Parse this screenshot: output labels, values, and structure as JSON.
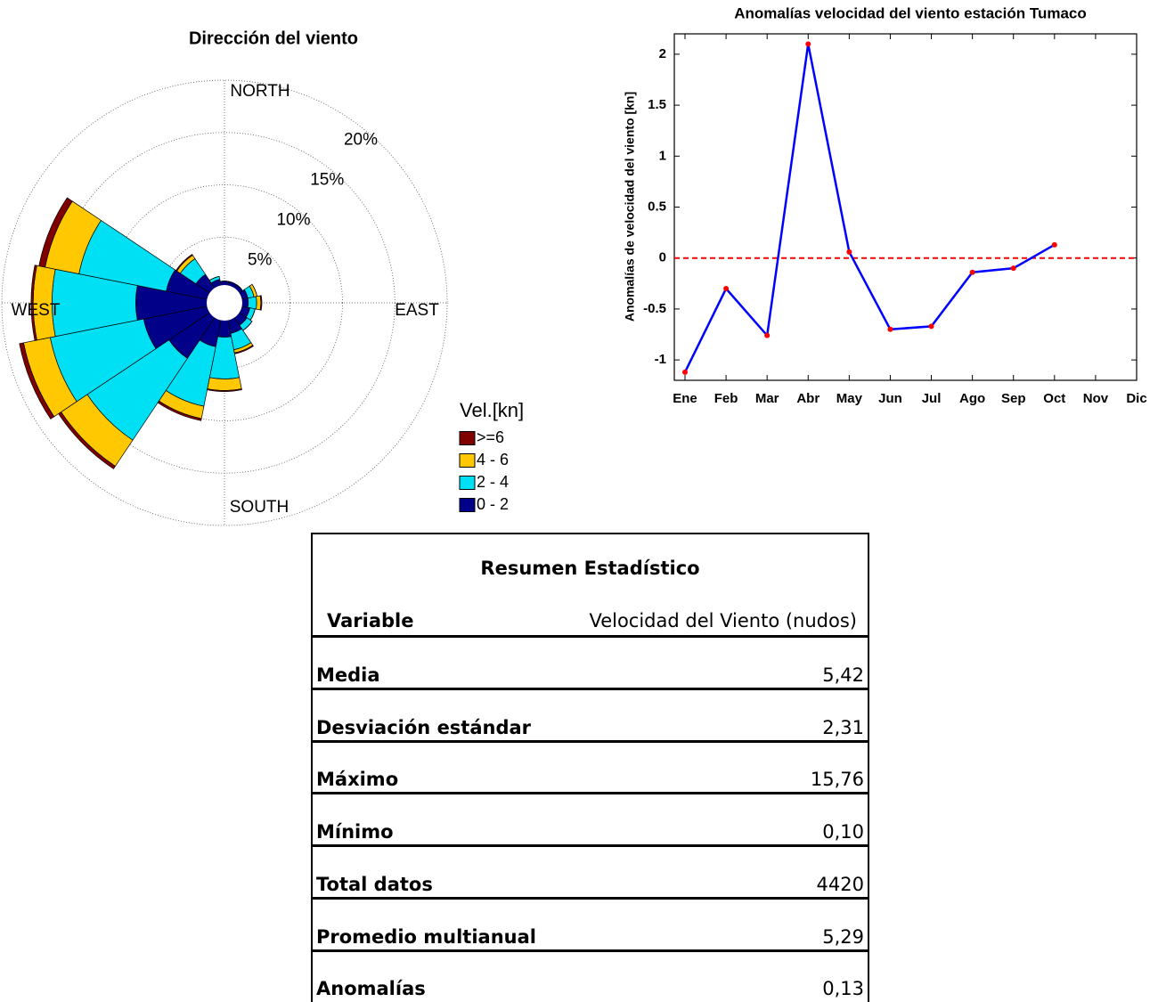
{
  "chart_data": [
    {
      "type": "windrose",
      "title": "Dirección del viento",
      "categories": [
        null,
        null,
        null,
        null,
        null,
        null,
        null,
        null,
        null,
        null,
        null,
        null,
        null,
        null,
        null,
        null
      ],
      "direction_labels": [
        "NORTH",
        "EAST",
        "SOUTH",
        "WEST"
      ],
      "legend_title": "Vel.[kn]",
      "rlim": [
        0,
        20
      ],
      "rticks": [
        {
          "value": 5,
          "label": "5%"
        },
        {
          "value": 10,
          "label": "10%"
        },
        {
          "value": 15,
          "label": "15%"
        },
        {
          "value": 20,
          "label": "20%"
        }
      ],
      "series": [
        {
          "name": "0 - 2",
          "color": "#000088",
          "values": [
            0.8,
            0.8,
            0.8,
            1.0,
            1.0,
            1.2,
            1.3,
            1.7,
            2.0,
            3.0,
            5.1,
            6.6,
            7.2,
            4.4,
            2.0,
            1.0
          ]
        },
        {
          "name": "2 - 4",
          "color": "#00e0f5",
          "values": [
            0,
            0,
            0,
            0.6,
            0.8,
            0.5,
            0.6,
            1.6,
            4.0,
            5.8,
            9.4,
            9.1,
            8.0,
            8.5,
            1.8,
            0.3
          ]
        },
        {
          "name": "4 - 6",
          "color": "#ffc800",
          "values": [
            0,
            0,
            0,
            0.3,
            0.4,
            0,
            0,
            0.3,
            1.1,
            1.2,
            3.0,
            2.6,
            1.8,
            3.3,
            0.4,
            0
          ]
        },
        {
          "name": ">=6",
          "color": "#800000",
          "values": [
            0,
            0,
            0,
            0,
            0.1,
            0,
            0,
            0.1,
            0.1,
            0.2,
            0.3,
            0.4,
            0.2,
            0.6,
            0.1,
            0
          ]
        }
      ]
    },
    {
      "type": "line",
      "title": "Anomalías velocidad del viento estación Tumaco",
      "ylabel": "Anomalías de velocidad del viento [kn]",
      "categories": [
        "Ene",
        "Feb",
        "Mar",
        "Abr",
        "May",
        "Jun",
        "Jul",
        "Ago",
        "Sep",
        "Oct",
        "Nov",
        "Dic"
      ],
      "values": [
        -1.12,
        -0.3,
        -0.76,
        2.1,
        0.06,
        -0.7,
        -0.67,
        -0.14,
        -0.1,
        0.13,
        null,
        null
      ],
      "color": "#0000ff",
      "marker_color": "#ff0000",
      "reference_line": {
        "y": 0,
        "color": "#ff0000"
      },
      "ylim": [
        -1.2,
        2.2
      ],
      "yticks": [
        -1,
        -0.5,
        0,
        0.5,
        1,
        1.5,
        2
      ]
    }
  ],
  "table": {
    "title": "Resumen Estadístico",
    "header": [
      "Variable",
      "Velocidad del Viento (nudos)"
    ],
    "rows": [
      [
        "Media",
        "5,42"
      ],
      [
        "Desviación estándar",
        "2,31"
      ],
      [
        "Máximo",
        "15,76"
      ],
      [
        "Mínimo",
        "0,10"
      ],
      [
        "Total datos",
        "4420"
      ],
      [
        "Promedio multianual",
        "5,29"
      ],
      [
        "Anomalías",
        "0,13"
      ]
    ]
  }
}
